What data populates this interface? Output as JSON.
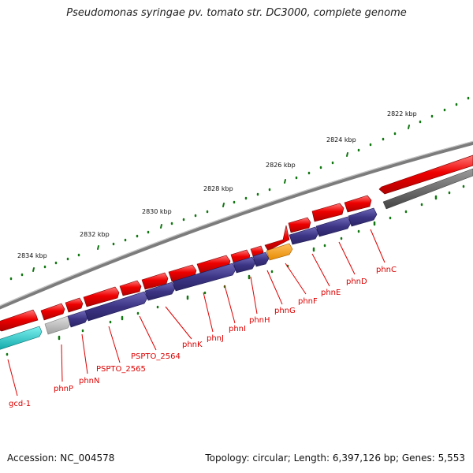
{
  "title": "Pseudomonas syringae pv. tomato str. DC3000, complete genome",
  "footer": {
    "accession": "Accession: NC_004578",
    "stats": "Topology: circular; Length: 6,397,126 bp; Genes: 5,553"
  },
  "ruler": {
    "labels": [
      "2822 kbp",
      "2824 kbp",
      "2826 kbp",
      "2828 kbp",
      "2830 kbp",
      "2832 kbp",
      "2834 kbp"
    ]
  },
  "colors": {
    "forward_cds": "#e40000",
    "reverse_cds": "#3d3585",
    "rna": "#ff9a00",
    "other": "#aaaaaa",
    "cyan_feature": "#19c4c4",
    "backbone": "#888888",
    "gc_skew": "#666666",
    "tick": "#117711",
    "label": "#dd0000"
  },
  "genes": [
    "phnC",
    "phnD",
    "phnE",
    "phnF",
    "phnG",
    "phnH",
    "phnI",
    "phnJ",
    "phnK",
    "PSPTO_2564",
    "PSPTO_2565",
    "phnN",
    "phnP",
    "gcd-1"
  ]
}
